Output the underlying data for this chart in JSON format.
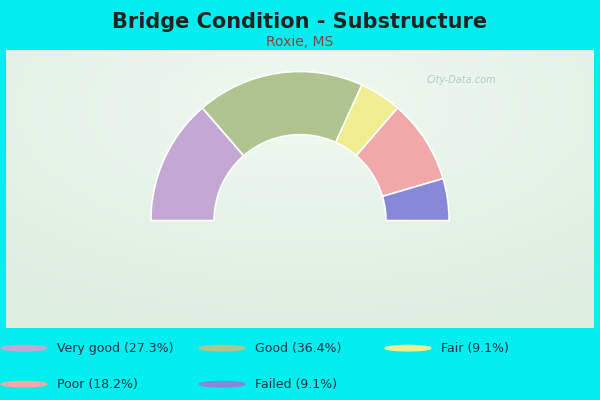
{
  "title": "Bridge Condition - Substructure",
  "subtitle": "Roxie, MS",
  "background_color": "#00EEEE",
  "chart_bg_outer": "#d8ede0",
  "chart_bg_inner": "#f0faf4",
  "segments": [
    {
      "label": "Very good (27.3%)",
      "value": 27.3,
      "color": "#c4a8d4"
    },
    {
      "label": "Good (36.4%)",
      "value": 36.4,
      "color": "#b0c490"
    },
    {
      "label": "Fair (9.1%)",
      "value": 9.1,
      "color": "#f0ee90"
    },
    {
      "label": "Poor (18.2%)",
      "value": 18.2,
      "color": "#f0a8a8"
    },
    {
      "label": "Failed (9.1%)",
      "value": 9.1,
      "color": "#8888d8"
    }
  ],
  "legend_colors": [
    "#c4a8d4",
    "#b0c490",
    "#f0ee90",
    "#f0a8a8",
    "#8888d8"
  ],
  "legend_labels": [
    "Very good (27.3%)",
    "Good (36.4%)",
    "Fair (9.1%)",
    "Poor (18.2%)",
    "Failed (9.1%)"
  ],
  "title_fontsize": 15,
  "subtitle_fontsize": 10,
  "title_color": "#222222",
  "subtitle_color": "#884444",
  "legend_text_color": "#223344",
  "legend_fontsize": 9,
  "watermark": "City-Data.com",
  "watermark_color": "#aabbcc"
}
